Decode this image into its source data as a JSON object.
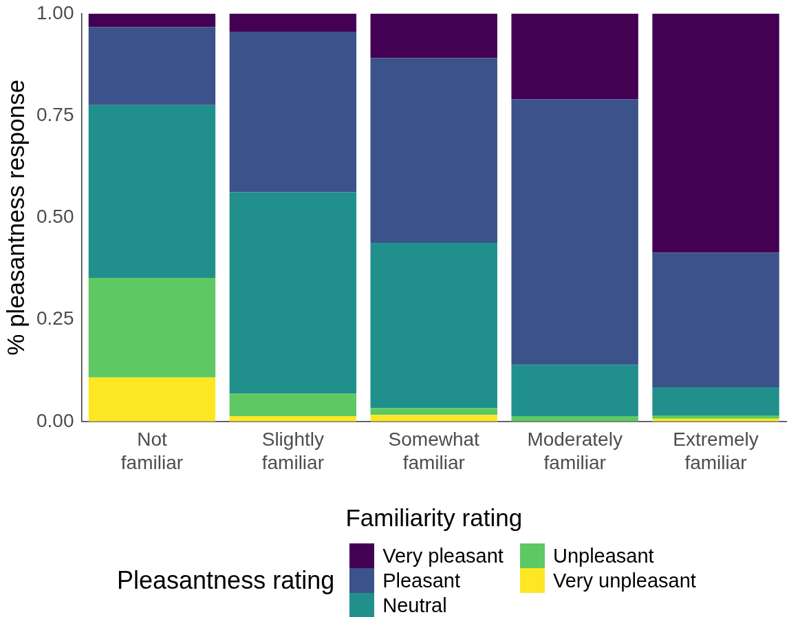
{
  "chart_data": {
    "type": "bar",
    "stacked": true,
    "xlabel": "Familiarity rating",
    "ylabel": "% pleasantness response",
    "legend_title": "Pleasantness rating",
    "legend": "bottom",
    "grid": false,
    "categories": [
      "Not familiar",
      "Slightly familiar",
      "Somewhat familiar",
      "Moderately familiar",
      "Extremely familiar"
    ],
    "ylim": [
      0,
      1
    ],
    "yticks": [
      {
        "value": 0,
        "label": "0.00"
      },
      {
        "value": 0.25,
        "label": "0.25"
      },
      {
        "value": 0.5,
        "label": "0.50"
      },
      {
        "value": 0.75,
        "label": "0.75"
      },
      {
        "value": 1,
        "label": "1.00"
      }
    ],
    "series": [
      {
        "name": "Very unpleasant",
        "color": "#fde725",
        "values": [
          0.108,
          0.013,
          0.016,
          0,
          0.007
        ]
      },
      {
        "name": "Unpleasant",
        "color": "#5ec962",
        "values": [
          0.244,
          0.055,
          0.017,
          0.013,
          0.008
        ]
      },
      {
        "name": "Neutral",
        "color": "#21908c",
        "values": [
          0.424,
          0.494,
          0.405,
          0.126,
          0.069
        ]
      },
      {
        "name": "Pleasant",
        "color": "#3b528b",
        "values": [
          0.191,
          0.394,
          0.453,
          0.651,
          0.33
        ]
      },
      {
        "name": "Very pleasant",
        "color": "#440154",
        "values": [
          0.033,
          0.044,
          0.109,
          0.21,
          0.586
        ]
      }
    ]
  }
}
